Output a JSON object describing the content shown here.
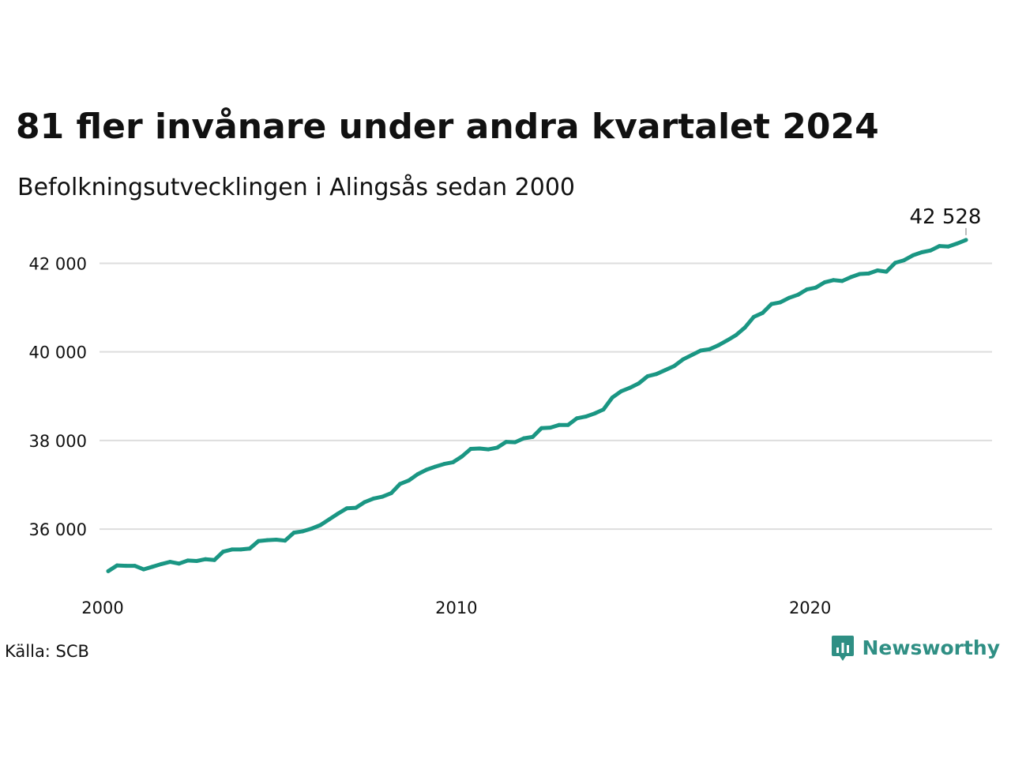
{
  "title": "81 fler invånare under andra kvartalet 2024",
  "subtitle": "Befolkningsutvecklingen i Alingsås sedan 2000",
  "source": "Källa: SCB",
  "brand": {
    "name": "Newsworthy",
    "logo_icon": "bar-chart-speech-bubble-icon",
    "color": "#2f8f84"
  },
  "colors": {
    "line": "#1a9683",
    "grid": "#dddddd"
  },
  "chart_data": {
    "type": "line",
    "title": "81 fler invånare under andra kvartalet 2024",
    "subtitle": "Befolkningsutvecklingen i Alingsås sedan 2000",
    "xlabel": "",
    "ylabel": "",
    "x_start": 2000.0,
    "x_step": 0.25,
    "x_ticks": [
      2000,
      2010,
      2020
    ],
    "x_tick_labels": [
      "2000",
      "2010",
      "2020"
    ],
    "xlim": [
      2000.0,
      2024.25
    ],
    "y_ticks": [
      36000,
      38000,
      40000,
      42000
    ],
    "y_tick_labels": [
      "36 000",
      "38 000",
      "40 000",
      "42 000"
    ],
    "ylim": [
      34700,
      42900
    ],
    "grid": true,
    "legend": "none",
    "end_label": "42 528",
    "values": [
      35050,
      35180,
      35170,
      35170,
      35090,
      35150,
      35210,
      35260,
      35220,
      35290,
      35280,
      35320,
      35300,
      35490,
      35540,
      35540,
      35560,
      35730,
      35750,
      35760,
      35740,
      35920,
      35950,
      36010,
      36090,
      36220,
      36350,
      36470,
      36480,
      36610,
      36690,
      36730,
      36810,
      37020,
      37100,
      37240,
      37340,
      37410,
      37470,
      37510,
      37640,
      37810,
      37820,
      37800,
      37840,
      37970,
      37960,
      38050,
      38080,
      38280,
      38290,
      38350,
      38350,
      38500,
      38540,
      38610,
      38700,
      38970,
      39110,
      39190,
      39290,
      39450,
      39500,
      39590,
      39680,
      39830,
      39930,
      40030,
      40060,
      40150,
      40260,
      40380,
      40550,
      40790,
      40880,
      41080,
      41120,
      41220,
      41290,
      41410,
      41450,
      41570,
      41620,
      41600,
      41690,
      41760,
      41770,
      41840,
      41810,
      42010,
      42070,
      42180,
      42250,
      42290,
      42390,
      42380,
      42447,
      42528
    ]
  }
}
